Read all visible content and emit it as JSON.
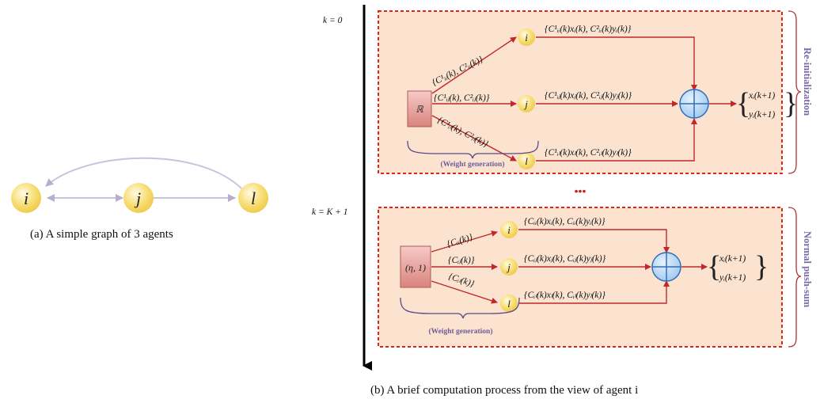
{
  "graph": {
    "nodes": [
      {
        "id": "i",
        "label": "i"
      },
      {
        "id": "j",
        "label": "j"
      },
      {
        "id": "l",
        "label": "l"
      }
    ],
    "caption": "(a) A simple graph of 3 agents"
  },
  "process": {
    "caption": "(b) A brief computation process from the view of agent i",
    "time_top": "k = 0",
    "time_bottom": "k = K + 1",
    "ellipsis": "•••",
    "reinit": {
      "side_label": "Re-initialization",
      "source_label": "ℝ",
      "weight_label": "(Weight generation)",
      "edge_labels": [
        "{C¹ᵢᵢ(k), C²ᵢᵢ(k)}",
        "{C¹ᵢⱼ(k), C²ᵢⱼ(k)}",
        "{C¹ᵢₗ(k), C²ᵢₗ(k)}"
      ],
      "message_labels": [
        "{C¹ᵢᵢ(k)xᵢ(k), C²ᵢᵢ(k)yᵢ(k)}",
        "{C¹ᵢⱼ(k)xⱼ(k), C²ᵢⱼ(k)yⱼ(k)}",
        "{C¹ᵢₗ(k)xₗ(k), C²ᵢₗ(k)yₗ(k)}"
      ],
      "output": [
        "xᵢ(k+1)",
        "yᵢ(k+1)"
      ]
    },
    "pushsum": {
      "side_label": "Normal push-sum",
      "source_label": "(η, 1)",
      "weight_label": "(Weight generation)",
      "edge_labels": [
        "{Cᵢᵢ(k)}",
        "{Cᵢⱼ(k)}",
        "{Cᵢₗ(k)}"
      ],
      "message_labels": [
        "{Cᵢᵢ(k)xᵢ(k), Cᵢᵢ(k)yᵢ(k)}",
        "{Cᵢⱼ(k)xⱼ(k), Cᵢⱼ(k)yⱼ(k)}",
        "{Cᵢₗ(k)xₗ(k), Cᵢₗ(k)yₗ(k)}"
      ],
      "output": [
        "xᵢ(k+1)",
        "yᵢ(k+1)"
      ]
    }
  },
  "colors": {
    "node_fill": "#f7dc6f",
    "panel_fill": "#fbe3d0",
    "panel_border": "#e0241c",
    "arrow": "#c0282a",
    "graph_edge": "#c9c3dd",
    "label_purple": "#7a68a8"
  }
}
